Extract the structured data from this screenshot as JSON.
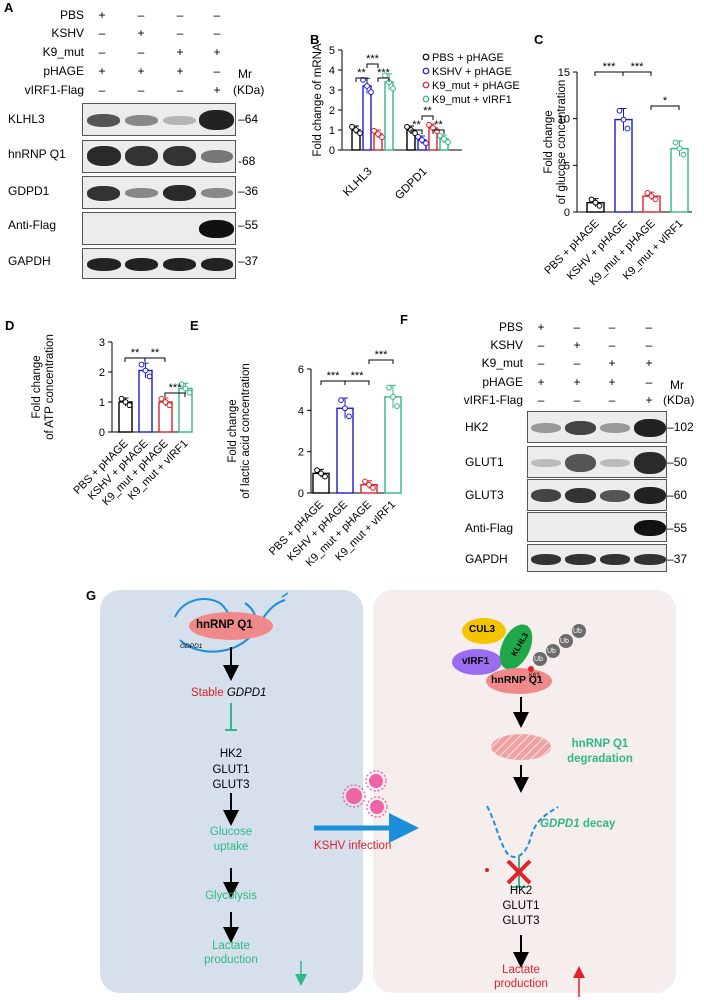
{
  "panel_letters": [
    "A",
    "B",
    "C",
    "D",
    "E",
    "F",
    "G"
  ],
  "blotA": {
    "conditions": [
      "PBS",
      "KSHV",
      "K9_mut",
      "pHAGE",
      "vIRF1-Flag"
    ],
    "signs": [
      [
        "+",
        "–",
        "–",
        "–"
      ],
      [
        "–",
        "+",
        "–",
        "–"
      ],
      [
        "–",
        "–",
        "+",
        "+"
      ],
      [
        "+",
        "+",
        "+",
        "–"
      ],
      [
        "–",
        "–",
        "–",
        "+"
      ]
    ],
    "mr_label": "Mr",
    "kda_label": "(KDa)",
    "rows": [
      {
        "name": "KLHL3",
        "mw": "64"
      },
      {
        "name": "hnRNP Q1",
        "mw": "68"
      },
      {
        "name": "GDPD1",
        "mw": "36"
      },
      {
        "name": "Anti-Flag",
        "mw": "55"
      },
      {
        "name": "GAPDH",
        "mw": "37"
      }
    ]
  },
  "blotF": {
    "conditions": [
      "PBS",
      "KSHV",
      "K9_mut",
      "pHAGE",
      "vIRF1-Flag"
    ],
    "signs": [
      [
        "+",
        "–",
        "–",
        "–"
      ],
      [
        "–",
        "+",
        "–",
        "–"
      ],
      [
        "–",
        "–",
        "+",
        "+"
      ],
      [
        "+",
        "+",
        "+",
        "–"
      ],
      [
        "–",
        "–",
        "–",
        "+"
      ]
    ],
    "mr_label": "Mr",
    "kda_label": "(KDa)",
    "rows": [
      {
        "name": "HK2",
        "mw": "102"
      },
      {
        "name": "GLUT1",
        "mw": "50"
      },
      {
        "name": "GLUT3",
        "mw": "60"
      },
      {
        "name": "Anti-Flag",
        "mw": "55"
      },
      {
        "name": "GAPDH",
        "mw": "37"
      }
    ]
  },
  "colors": {
    "black": "#000000",
    "blue": "#1a1ad6",
    "red": "#e0202a",
    "green": "#2fb886",
    "diagram_left": "#d5e0ec",
    "diagram_right": "#f6eded"
  },
  "chart_data": [
    {
      "panel": "B",
      "type": "bar",
      "ylabel": "Fold change of mRNA",
      "ylim": [
        0,
        5
      ],
      "yticks": [
        "0",
        "1",
        "2",
        "3",
        "4",
        "5"
      ],
      "categories": [
        "KLHL3",
        "GDPD1"
      ],
      "series": [
        {
          "name": "PBS + pHAGE",
          "values": [
            1.0,
            1.0
          ]
        },
        {
          "name": "KSHV + pHAGE",
          "values": [
            3.2,
            0.5
          ]
        },
        {
          "name": "K9_mut + pHAGE",
          "values": [
            0.8,
            1.1
          ]
        },
        {
          "name": "K9_mut + vIRF1",
          "values": [
            3.4,
            0.55
          ]
        }
      ],
      "significance": [
        "**",
        "***",
        "***",
        "**",
        "**",
        "**"
      ]
    },
    {
      "panel": "C",
      "type": "bar",
      "ylabel": "Fold change of glucose concentration",
      "ylim": [
        0,
        15
      ],
      "yticks": [
        "0",
        "5",
        "10",
        "15"
      ],
      "categories": [
        "PBS + pHAGE",
        "KSHV + pHAGE",
        "K9_mut + pHAGE",
        "K9_mut + vIRF1"
      ],
      "values": [
        1.0,
        9.9,
        1.7,
        6.8
      ],
      "significance": [
        "***",
        "***",
        "*"
      ]
    },
    {
      "panel": "D",
      "type": "bar",
      "ylabel": "Fold change of ATP concentration",
      "ylim": [
        0,
        3
      ],
      "yticks": [
        "0",
        "1",
        "2",
        "3"
      ],
      "categories": [
        "PBS + pHAGE",
        "KSHV + pHAGE",
        "K9_mut + pHAGE",
        "K9_mut + vIRF1"
      ],
      "values": [
        1.0,
        2.05,
        1.0,
        1.45
      ],
      "significance": [
        "**",
        "**",
        "***"
      ]
    },
    {
      "panel": "E",
      "type": "bar",
      "ylabel": "Fold change of lactic acid concentration",
      "ylim": [
        0,
        6
      ],
      "yticks": [
        "0",
        "2",
        "4",
        "6"
      ],
      "categories": [
        "PBS + pHAGE",
        "KSHV + pHAGE",
        "K9_mut + pHAGE",
        "K9_mut + vIRF1"
      ],
      "values": [
        0.95,
        4.1,
        0.4,
        4.65
      ],
      "significance": [
        "***",
        "***",
        "***"
      ]
    }
  ],
  "diagram": {
    "left": {
      "hnrnp": "hnRNP Q1",
      "gdpd1_small": "GDPD1",
      "stable_word": "Stable ",
      "stable_gene": "GDPD1",
      "targets": [
        "HK2",
        "GLUT1",
        "GLUT3"
      ],
      "glucose": [
        "Glucose",
        "uptake"
      ],
      "glycolysis": "Glycolysis",
      "lactate": [
        "Lactate",
        "production"
      ]
    },
    "middle": {
      "infection": "KSHV infection"
    },
    "right": {
      "cul3": "CUL3",
      "virf1": "vIRF1",
      "klhl3": "KLHL3",
      "k63": "K63",
      "ub": "Ub",
      "hnrnp": "hnRNP Q1",
      "degradation": [
        "hnRNP Q1",
        "degradation"
      ],
      "decay_gene": "GDPD1",
      "decay_word": " decay",
      "targets": [
        "HK2",
        "GLUT1",
        "GLUT3"
      ],
      "lactate": [
        "Lactate",
        "production"
      ]
    }
  }
}
